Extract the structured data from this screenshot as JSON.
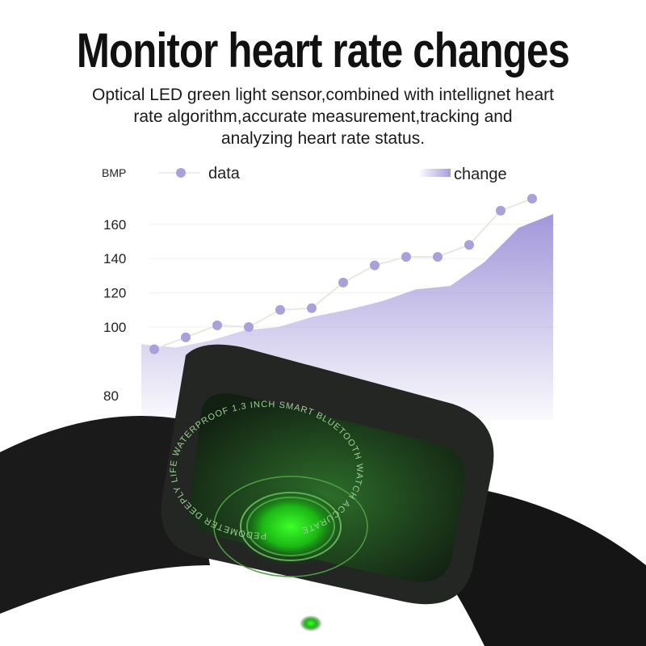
{
  "title": "Monitor heart rate changes",
  "subtitle_lines": [
    "Optical LED green light sensor,combined with intellignet heart",
    "rate algorithm,accurate measurement,tracking and",
    "analyzing heart rate status."
  ],
  "chart_data": {
    "type": "line",
    "ylabel": "BMP",
    "y_ticks": [
      80,
      100,
      120,
      140,
      160
    ],
    "ylim": [
      75,
      180
    ],
    "grid": true,
    "legend_placement": "top",
    "series": [
      {
        "name": "data",
        "type": "line",
        "color": "#a9a1d9",
        "values": [
          87,
          94,
          101,
          100,
          110,
          111,
          126,
          136,
          141,
          141,
          148,
          168,
          175
        ]
      },
      {
        "name": "change",
        "type": "area",
        "color": "#9d92d8",
        "values": [
          90,
          88,
          92,
          98,
          100,
          106,
          110,
          115,
          122,
          124,
          138,
          158,
          166
        ]
      }
    ]
  },
  "watch": {
    "ring_text": "PEDOMETER DEEPLY LIFE WATERPROOF 1.3 INCH SMART BLUETOOTH WATCH ACCURATE",
    "sensor_color": "#22e01a",
    "body_color": "#1c1f1c"
  }
}
